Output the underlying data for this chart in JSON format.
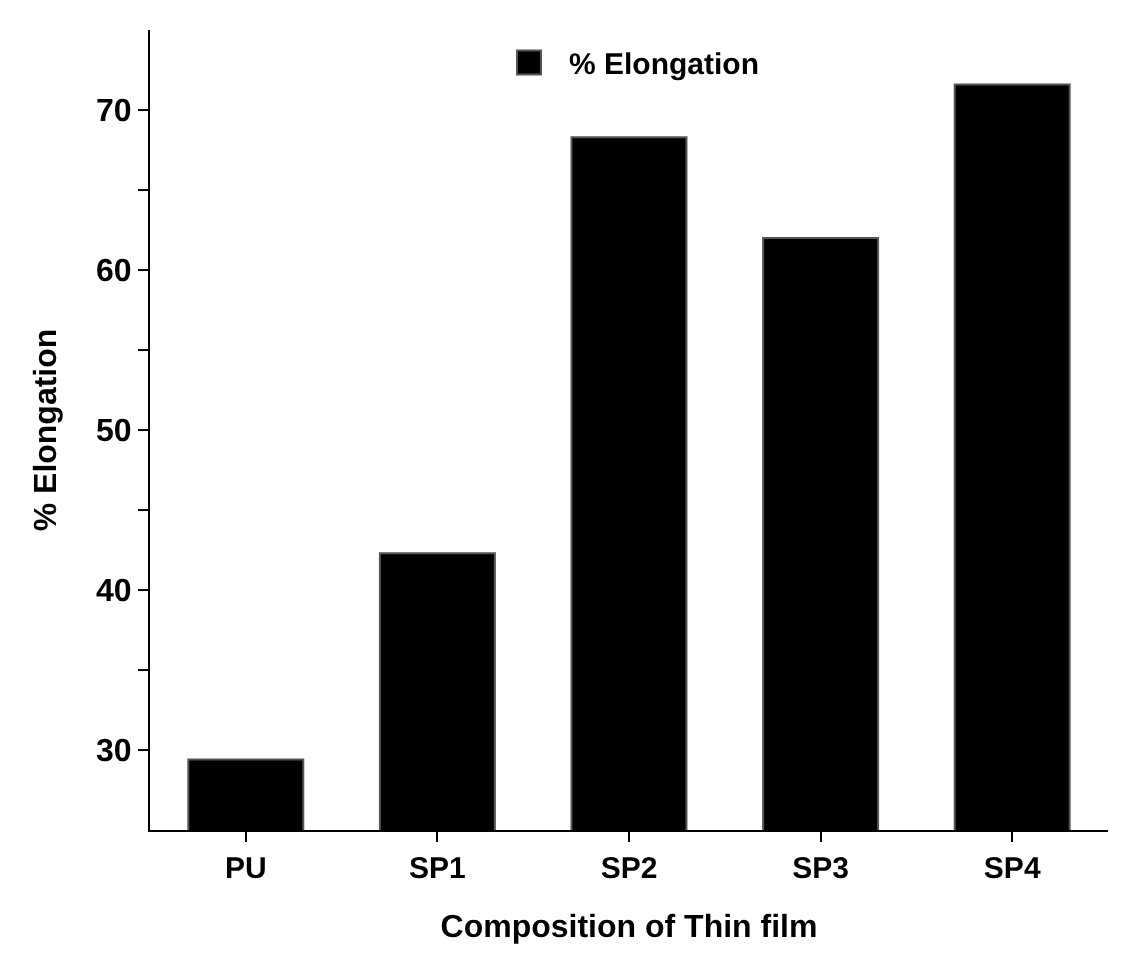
{
  "chart_data": {
    "type": "bar",
    "xlabel": "Composition of Thin film",
    "ylabel": "% Elongation",
    "categories": [
      "PU",
      "SP1",
      "SP2",
      "SP3",
      "SP4"
    ],
    "series": [
      {
        "name": "% Elongation",
        "color": "#000000",
        "values": [
          29.4,
          42.3,
          68.3,
          62.0,
          71.6
        ]
      }
    ],
    "ylim": [
      25,
      75
    ],
    "yticks": [
      30,
      {
        "value": 35,
        "label": null
      },
      40,
      {
        "value": 45,
        "label": null
      },
      50,
      {
        "value": 55,
        "label": null
      },
      60,
      {
        "value": 65,
        "label": null
      },
      70
    ],
    "legend": "top"
  }
}
